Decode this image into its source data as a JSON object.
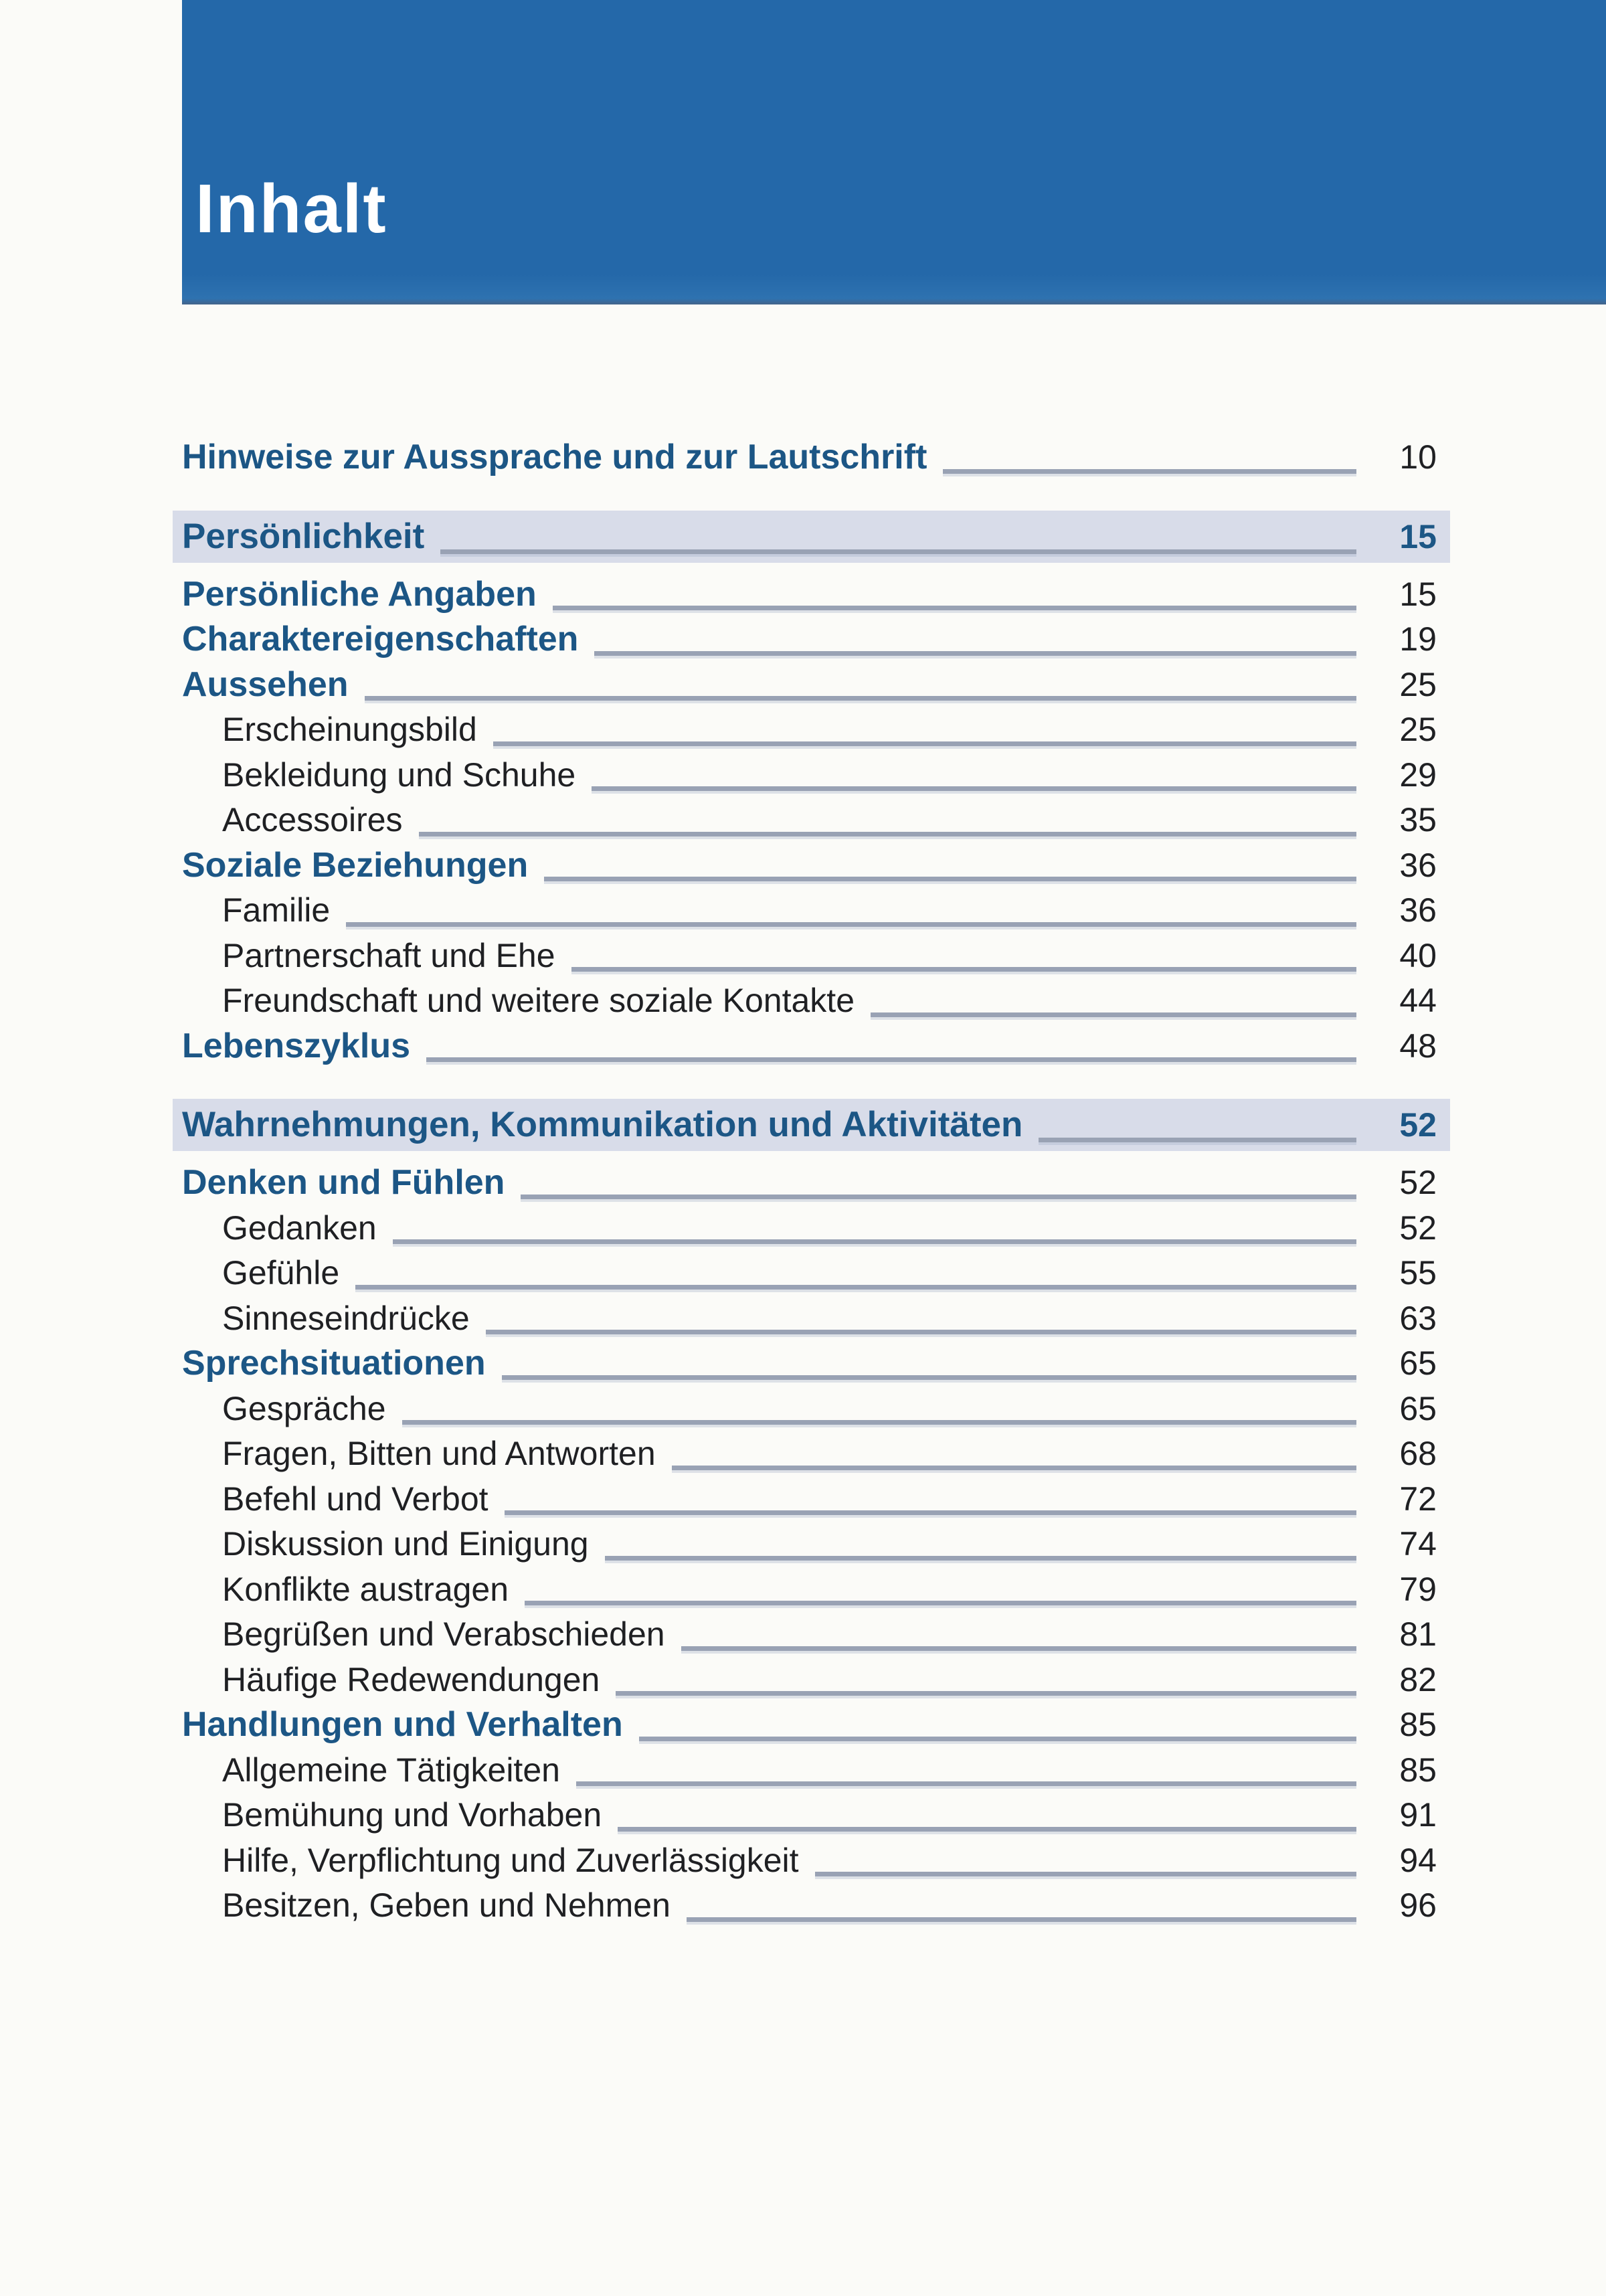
{
  "header": {
    "title": "Inhalt"
  },
  "colors": {
    "header_bg": "#2468a9",
    "header_text": "#ffffff",
    "highlight_bg": "#d8dce9",
    "section_text": "#1c5685",
    "entry_text": "#1f2023",
    "leader": "#99a2b4",
    "page_bg": "#fbfbf8"
  },
  "toc": {
    "entries": [
      {
        "label": "Hinweise zur Aussprache und zur Lautschrift",
        "page": "10",
        "style": "bold",
        "level": 0
      },
      {
        "label": "Persönlichkeit",
        "page": "15",
        "style": "chapter",
        "level": 0
      },
      {
        "label": "Persönliche Angaben",
        "page": "15",
        "style": "bold",
        "level": 0
      },
      {
        "label": "Charaktereigenschaften",
        "page": "19",
        "style": "bold",
        "level": 0
      },
      {
        "label": "Aussehen",
        "page": "25",
        "style": "bold",
        "level": 0
      },
      {
        "label": "Erscheinungsbild",
        "page": "25",
        "style": "normal",
        "level": 1
      },
      {
        "label": "Bekleidung und Schuhe",
        "page": "29",
        "style": "normal",
        "level": 1
      },
      {
        "label": "Accessoires",
        "page": "35",
        "style": "normal",
        "level": 1
      },
      {
        "label": "Soziale Beziehungen",
        "page": "36",
        "style": "bold",
        "level": 0
      },
      {
        "label": "Familie",
        "page": "36",
        "style": "normal",
        "level": 1
      },
      {
        "label": "Partnerschaft und Ehe",
        "page": "40",
        "style": "normal",
        "level": 1
      },
      {
        "label": "Freundschaft und weitere soziale Kontakte",
        "page": "44",
        "style": "normal",
        "level": 1
      },
      {
        "label": "Lebenszyklus",
        "page": "48",
        "style": "bold",
        "level": 0
      },
      {
        "label": "Wahrnehmungen, Kommunikation und Aktivitäten",
        "page": "52",
        "style": "chapter",
        "level": 0
      },
      {
        "label": "Denken und Fühlen",
        "page": "52",
        "style": "bold",
        "level": 0
      },
      {
        "label": "Gedanken",
        "page": "52",
        "style": "normal",
        "level": 1
      },
      {
        "label": "Gefühle",
        "page": "55",
        "style": "normal",
        "level": 1
      },
      {
        "label": "Sinneseindrücke",
        "page": "63",
        "style": "normal",
        "level": 1
      },
      {
        "label": "Sprechsituationen",
        "page": "65",
        "style": "bold",
        "level": 0
      },
      {
        "label": "Gespräche",
        "page": "65",
        "style": "normal",
        "level": 1
      },
      {
        "label": "Fragen, Bitten und Antworten",
        "page": "68",
        "style": "normal",
        "level": 1
      },
      {
        "label": "Befehl und Verbot",
        "page": "72",
        "style": "normal",
        "level": 1
      },
      {
        "label": "Diskussion und Einigung",
        "page": "74",
        "style": "normal",
        "level": 1
      },
      {
        "label": "Konflikte austragen",
        "page": "79",
        "style": "normal",
        "level": 1
      },
      {
        "label": "Begrüßen und Verabschieden",
        "page": "81",
        "style": "normal",
        "level": 1
      },
      {
        "label": "Häufige Redewendungen",
        "page": "82",
        "style": "normal",
        "level": 1
      },
      {
        "label": "Handlungen und Verhalten",
        "page": "85",
        "style": "bold",
        "level": 0
      },
      {
        "label": "Allgemeine Tätigkeiten",
        "page": "85",
        "style": "normal",
        "level": 1
      },
      {
        "label": "Bemühung und Vorhaben",
        "page": "91",
        "style": "normal",
        "level": 1
      },
      {
        "label": "Hilfe, Verpflichtung und Zuverlässigkeit",
        "page": "94",
        "style": "normal",
        "level": 1
      },
      {
        "label": "Besitzen, Geben und Nehmen",
        "page": "96",
        "style": "normal",
        "level": 1
      }
    ]
  }
}
